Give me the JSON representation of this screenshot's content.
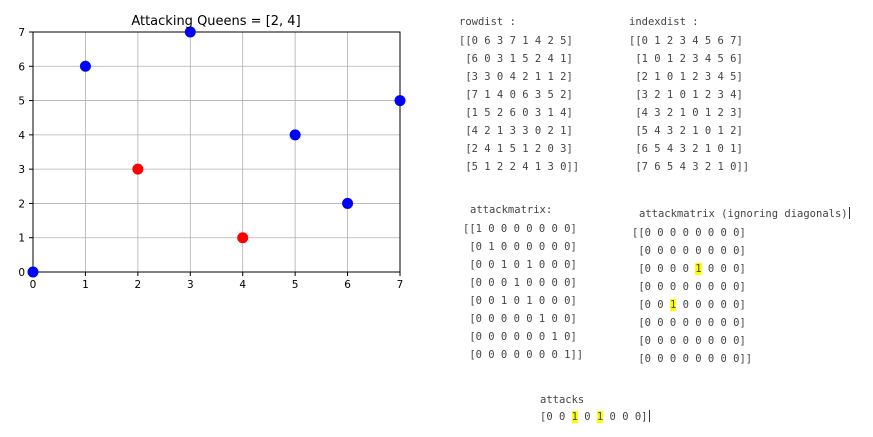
{
  "chart_data": {
    "type": "scatter",
    "title": "Attacking Queens = [2, 4]",
    "xlabel": "",
    "ylabel": "",
    "xlim": [
      0,
      7
    ],
    "ylim": [
      0,
      7
    ],
    "xticks": [
      "0",
      "1",
      "2",
      "3",
      "4",
      "5",
      "6",
      "7"
    ],
    "yticks": [
      "0",
      "1",
      "2",
      "3",
      "4",
      "5",
      "6",
      "7"
    ],
    "grid": true,
    "series": [
      {
        "color": "#0000ff",
        "points": [
          [
            0,
            0
          ],
          [
            1,
            6
          ],
          [
            3,
            7
          ],
          [
            5,
            4
          ],
          [
            6,
            2
          ],
          [
            7,
            5
          ]
        ]
      },
      {
        "color": "#ff0000",
        "points": [
          [
            2,
            3
          ],
          [
            4,
            1
          ]
        ]
      }
    ]
  },
  "rowdist": {
    "label": "rowdist :",
    "rows": [
      "[[0 6 3 7 1 4 2 5]",
      " [6 0 3 1 5 2 4 1]",
      " [3 3 0 4 2 1 1 2]",
      " [7 1 4 0 6 3 5 2]",
      " [1 5 2 6 0 3 1 4]",
      " [4 2 1 3 3 0 2 1]",
      " [2 4 1 5 1 2 0 3]",
      " [5 1 2 2 4 1 3 0]]"
    ]
  },
  "indexdist": {
    "label": "indexdist :",
    "rows": [
      "[[0 1 2 3 4 5 6 7]",
      " [1 0 1 2 3 4 5 6]",
      " [2 1 0 1 2 3 4 5]",
      " [3 2 1 0 1 2 3 4]",
      " [4 3 2 1 0 1 2 3]",
      " [5 4 3 2 1 0 1 2]",
      " [6 5 4 3 2 1 0 1]",
      " [7 6 5 4 3 2 1 0]]"
    ]
  },
  "attackmatrix": {
    "label": "attackmatrix:",
    "rows": [
      "[[1 0 0 0 0 0 0 0]",
      " [0 1 0 0 0 0 0 0]",
      " [0 0 1 0 1 0 0 0]",
      " [0 0 0 1 0 0 0 0]",
      " [0 0 1 0 1 0 0 0]",
      " [0 0 0 0 0 1 0 0]",
      " [0 0 0 0 0 0 1 0]",
      " [0 0 0 0 0 0 0 1]]"
    ]
  },
  "attackmatrix_nodiag": {
    "label": "attackmatrix (ignoring diagonals)",
    "rows": [
      {
        "pre": "[[0 0 0 0 0 0 0 0]",
        "hl": "",
        "post": ""
      },
      {
        "pre": " [0 0 0 0 0 0 0 0]",
        "hl": "",
        "post": ""
      },
      {
        "pre": " [0 0 0 0 ",
        "hl": "1",
        "post": " 0 0 0]"
      },
      {
        "pre": " [0 0 0 0 0 0 0 0]",
        "hl": "",
        "post": ""
      },
      {
        "pre": " [0 0 ",
        "hl": "1",
        "post": " 0 0 0 0 0]"
      },
      {
        "pre": " [0 0 0 0 0 0 0 0]",
        "hl": "",
        "post": ""
      },
      {
        "pre": " [0 0 0 0 0 0 0 0]",
        "hl": "",
        "post": ""
      },
      {
        "pre": " [0 0 0 0 0 0 0 0]]",
        "hl": "",
        "post": ""
      }
    ]
  },
  "attacks": {
    "label": "attacks",
    "pre": "[0 0 ",
    "hl1": "1",
    "mid": " 0 ",
    "hl2": "1",
    "post": " 0 0 0]"
  }
}
